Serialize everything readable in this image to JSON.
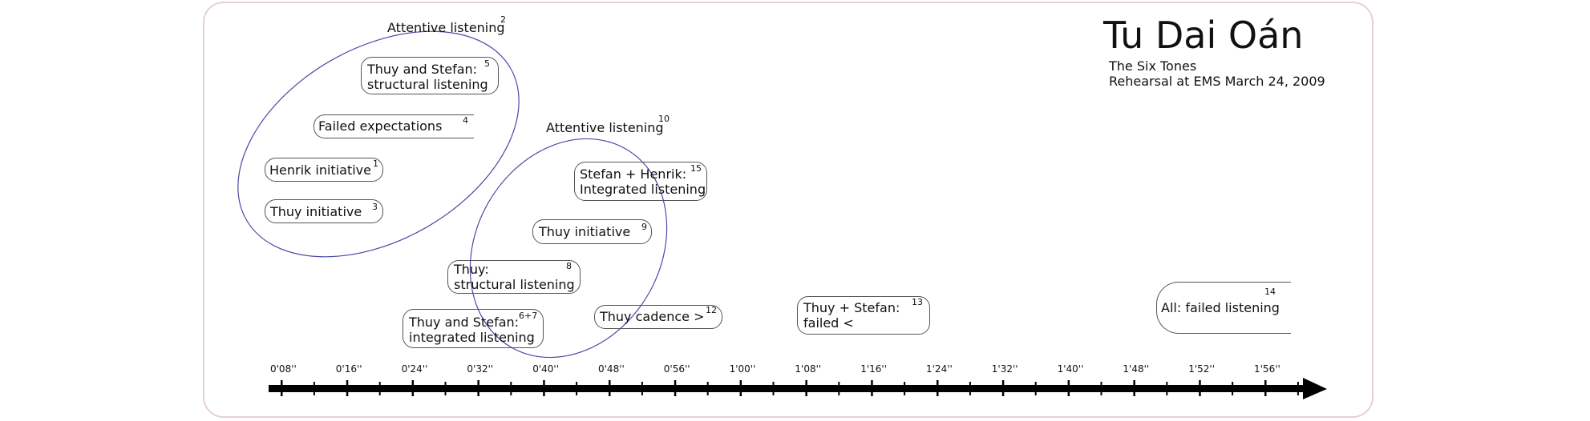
{
  "header": {
    "title": "Tu Dai Oán",
    "subtitle_1": "The Six Tones",
    "subtitle_2": "Rehearsal at EMS March 24, 2009"
  },
  "groups": [
    {
      "label": "Attentive listening",
      "number": "2"
    },
    {
      "label": "Attentive listening",
      "number": "10"
    }
  ],
  "events": [
    {
      "line1": "Thuy and Stefan:",
      "line2": "structural listening",
      "number": "5"
    },
    {
      "line1": "Failed expectations",
      "line2": "",
      "number": "4"
    },
    {
      "line1": "Henrik initiative",
      "line2": "",
      "number": "1"
    },
    {
      "line1": "Thuy initiative",
      "line2": "",
      "number": "3"
    },
    {
      "line1": "Stefan + Henrik:",
      "line2": "Integrated listening",
      "number": "15"
    },
    {
      "line1": "Thuy initiative",
      "line2": "",
      "number": "9"
    },
    {
      "line1": "Thuy:",
      "line2": "structural listening",
      "number": "8"
    },
    {
      "line1": "Thuy and Stefan:",
      "line2": "integrated listening",
      "number": "6+7"
    },
    {
      "line1": "Thuy cadence >",
      "line2": "",
      "number": "12"
    },
    {
      "line1": "Thuy + Stefan:",
      "line2": "failed <",
      "number": "13"
    },
    {
      "line1": "All: failed listening",
      "line2": "",
      "number": "14"
    }
  ],
  "timeline": {
    "ticks": [
      "0'08''",
      "0'16''",
      "0'24''",
      "0'32''",
      "0'40''",
      "0'48''",
      "0'56''",
      "1'00''",
      "1'08''",
      "1'16''",
      "1'24''",
      "1'32''",
      "1'40''",
      "1'48''",
      "1'52''",
      "1'56''"
    ]
  },
  "colors": {
    "ellipse": "#4a4aa8",
    "frame": "#e7cfd6",
    "axis": "#000000"
  }
}
